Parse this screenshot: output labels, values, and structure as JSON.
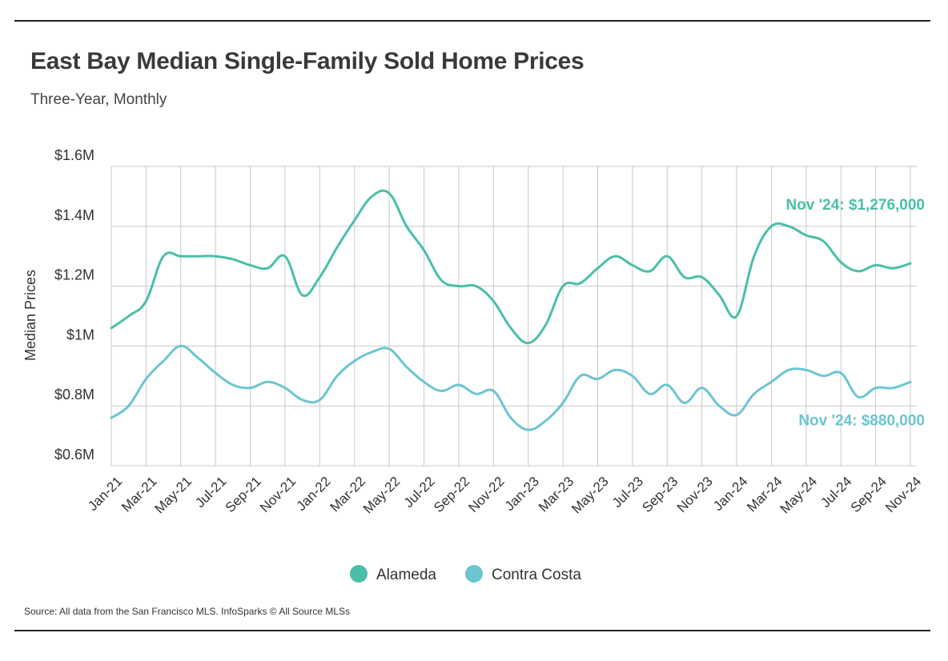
{
  "title": "East Bay Median Single-Family Sold Home Prices",
  "subtitle": "Three-Year, Monthly",
  "source": "Source:  All data from the San Francisco MLS. InfoSparks © All Source MLSs",
  "chart_data": {
    "type": "line",
    "ylabel": "Median Prices",
    "xlabel": "",
    "ylim": [
      0.6,
      1.6
    ],
    "y_ticks": [
      {
        "value": 1.6,
        "label": "$1.6M"
      },
      {
        "value": 1.4,
        "label": "$1.4M"
      },
      {
        "value": 1.2,
        "label": "$1.2M"
      },
      {
        "value": 1.0,
        "label": "$1M"
      },
      {
        "value": 0.8,
        "label": "$0.8M"
      },
      {
        "value": 0.6,
        "label": "$0.6M"
      }
    ],
    "x_tick_labels": [
      "Jan-21",
      "Mar-21",
      "May-21",
      "Jul-21",
      "Sep-21",
      "Nov-21",
      "Jan-22",
      "Mar-22",
      "May-22",
      "Jul-22",
      "Sep-22",
      "Nov-22",
      "Jan-23",
      "Mar-23",
      "May-23",
      "Jul-23",
      "Sep-23",
      "Nov-23",
      "Jan-24",
      "Mar-24",
      "May-24",
      "Jul-24",
      "Sep-24",
      "Nov-24"
    ],
    "x": [
      "Jan-21",
      "Feb-21",
      "Mar-21",
      "Apr-21",
      "May-21",
      "Jun-21",
      "Jul-21",
      "Aug-21",
      "Sep-21",
      "Oct-21",
      "Nov-21",
      "Dec-21",
      "Jan-22",
      "Feb-22",
      "Mar-22",
      "Apr-22",
      "May-22",
      "Jun-22",
      "Jul-22",
      "Aug-22",
      "Sep-22",
      "Oct-22",
      "Nov-22",
      "Dec-22",
      "Jan-23",
      "Feb-23",
      "Mar-23",
      "Apr-23",
      "May-23",
      "Jun-23",
      "Jul-23",
      "Aug-23",
      "Sep-23",
      "Oct-23",
      "Nov-23",
      "Dec-23",
      "Jan-24",
      "Feb-24",
      "Mar-24",
      "Apr-24",
      "May-24",
      "Jun-24",
      "Jul-24",
      "Aug-24",
      "Sep-24",
      "Oct-24",
      "Nov-24"
    ],
    "series": [
      {
        "name": "Alameda",
        "color": "#4ABFA8",
        "values": [
          1.06,
          1.1,
          1.15,
          1.3,
          1.3,
          1.3,
          1.3,
          1.29,
          1.27,
          1.26,
          1.3,
          1.17,
          1.23,
          1.33,
          1.42,
          1.5,
          1.51,
          1.4,
          1.32,
          1.22,
          1.2,
          1.2,
          1.15,
          1.06,
          1.01,
          1.07,
          1.2,
          1.21,
          1.26,
          1.3,
          1.27,
          1.25,
          1.3,
          1.23,
          1.23,
          1.17,
          1.1,
          1.3,
          1.4,
          1.4,
          1.37,
          1.35,
          1.28,
          1.25,
          1.27,
          1.26,
          1.276
        ]
      },
      {
        "name": "Contra Costa",
        "color": "#6CC5D2",
        "values": [
          0.76,
          0.8,
          0.89,
          0.95,
          1.0,
          0.96,
          0.91,
          0.87,
          0.86,
          0.88,
          0.86,
          0.82,
          0.82,
          0.9,
          0.95,
          0.98,
          0.99,
          0.93,
          0.88,
          0.85,
          0.87,
          0.84,
          0.85,
          0.76,
          0.72,
          0.75,
          0.81,
          0.9,
          0.89,
          0.92,
          0.9,
          0.84,
          0.87,
          0.81,
          0.86,
          0.8,
          0.77,
          0.84,
          0.88,
          0.92,
          0.92,
          0.9,
          0.91,
          0.83,
          0.86,
          0.86,
          0.88
        ]
      }
    ],
    "annotations": [
      {
        "series": "Alameda",
        "text": "Nov '24: $1,276,000"
      },
      {
        "series": "Contra Costa",
        "text": "Nov '24: $880,000"
      }
    ],
    "legend": {
      "placement": "bottom-center",
      "entries": [
        "Alameda",
        "Contra Costa"
      ]
    },
    "grid": true
  }
}
